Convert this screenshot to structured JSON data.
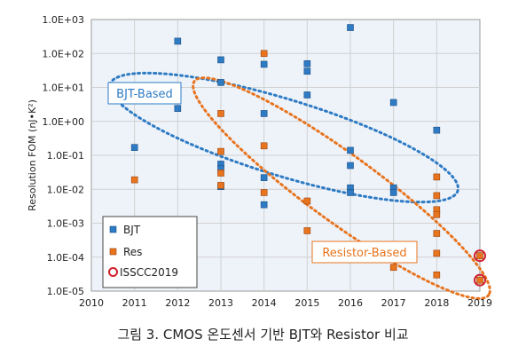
{
  "caption": "그림 3. CMOS 온도센서 기반 BJT와 Resistor 비교",
  "colors": {
    "bjt": "#2E7BC4",
    "res": "#E8741E",
    "isscc": "#D0202A",
    "grid": "#D0D0D0",
    "plot_bg": "#EEF3FA"
  },
  "chart_data": {
    "type": "scatter",
    "ylabel": "Resolution FOM (nJ•K²)",
    "xlabel": "",
    "yscale": "log",
    "xlim": [
      2010,
      2019
    ],
    "ylim": [
      1e-05,
      1000.0
    ],
    "grid": true,
    "x_ticks": [
      "2010",
      "2011",
      "2012",
      "2013",
      "2014",
      "2015",
      "2016",
      "2017",
      "2018",
      "2019"
    ],
    "y_ticks": [
      "1.0E-05",
      "1.0E-04",
      "1.0E-03",
      "1.0E-02",
      "1.0E-01",
      "1.0E+00",
      "1.0E+01",
      "1.0E+02",
      "1.0E+03"
    ],
    "legend": {
      "position": "bottom-left",
      "entries": [
        "BJT",
        "Res",
        "ISSCC2019"
      ]
    },
    "annotations": [
      "BJT-Based",
      "Resistor-Based"
    ],
    "series": [
      {
        "name": "BJT",
        "marker": "square",
        "points": [
          [
            2011,
            0.17
          ],
          [
            2012,
            230
          ],
          [
            2012,
            2.4
          ],
          [
            2013,
            65
          ],
          [
            2013,
            14
          ],
          [
            2013,
            0.055
          ],
          [
            2013,
            0.04
          ],
          [
            2013,
            0.012
          ],
          [
            2014,
            48
          ],
          [
            2014,
            1.7
          ],
          [
            2014,
            0.022
          ],
          [
            2014,
            0.0035
          ],
          [
            2015,
            50
          ],
          [
            2015,
            30
          ],
          [
            2015,
            6
          ],
          [
            2016,
            580
          ],
          [
            2016,
            0.14
          ],
          [
            2016,
            0.05
          ],
          [
            2016,
            0.011
          ],
          [
            2016,
            0.008
          ],
          [
            2017,
            3.6
          ],
          [
            2017,
            0.011
          ],
          [
            2017,
            0.008
          ],
          [
            2018,
            0.55
          ]
        ]
      },
      {
        "name": "Res",
        "marker": "square",
        "points": [
          [
            2011,
            0.019
          ],
          [
            2013,
            1.7
          ],
          [
            2013,
            0.13
          ],
          [
            2013,
            0.03
          ],
          [
            2013,
            0.013
          ],
          [
            2014,
            100
          ],
          [
            2014,
            0.19
          ],
          [
            2014,
            0.008
          ],
          [
            2015,
            0.0045
          ],
          [
            2015,
            0.0006
          ],
          [
            2017,
            5e-05
          ],
          [
            2018,
            0.023
          ],
          [
            2018,
            0.0065
          ],
          [
            2018,
            0.0025
          ],
          [
            2018,
            0.0018
          ],
          [
            2018,
            0.0005
          ],
          [
            2018,
            0.00013
          ],
          [
            2018,
            3e-05
          ]
        ]
      },
      {
        "name": "ISSCC2019",
        "marker": "circle",
        "points": [
          [
            2019,
            0.00011
          ],
          [
            2019,
            2.1e-05
          ]
        ]
      }
    ]
  }
}
